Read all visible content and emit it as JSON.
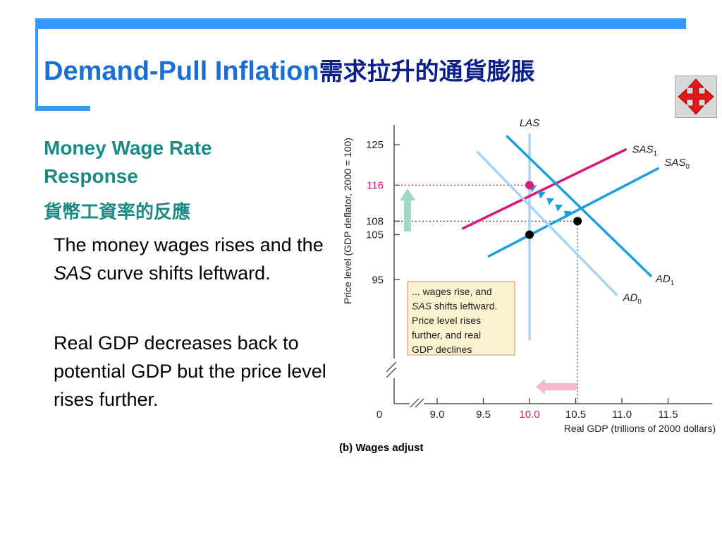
{
  "slide": {
    "title_en": "Demand-Pull Inflation",
    "title_zh": "需求拉升的通貨膨脹",
    "subheading_en": "Money Wage Rate Response",
    "subheading_zh": "貨幣工資率的反應",
    "para1_prefix": "The money wages rises and the ",
    "para1_em": "SAS",
    "para1_suffix": " curve shifts leftward.",
    "para2": "Real GDP decreases back to potential GDP but the price level rises further.",
    "nav_icon": "move-arrows-icon"
  },
  "chart_data": {
    "type": "line",
    "caption": "(b) Wages adjust",
    "xlabel": "Real GDP (trillions of 2000 dollars)",
    "ylabel": "Price level (GDP deflator, 2000 = 100)",
    "x_ticks": [
      "0",
      "9.0",
      "9.5",
      "10.0",
      "10.5",
      "11.0",
      "11.5"
    ],
    "x_tick_values": [
      9.0,
      9.5,
      10.0,
      10.5,
      11.0,
      11.5
    ],
    "y_ticks": [
      125,
      116,
      108,
      105,
      95
    ],
    "highlight_y_tick": 116,
    "highlight_x_tick": 10.0,
    "lines": [
      {
        "name": "LAS",
        "label": "LAS",
        "sub": "",
        "color": "#a8d4f2",
        "points": [
          [
            10.0,
            127.5
          ],
          [
            10.0,
            81.5
          ]
        ]
      },
      {
        "name": "SAS1",
        "label": "SAS",
        "sub": "1",
        "color": "#d81a78",
        "points": [
          [
            9.27,
            106.3
          ],
          [
            11.05,
            124.0
          ]
        ]
      },
      {
        "name": "SAS0",
        "label": "SAS",
        "sub": "0",
        "color": "#1aa0dc",
        "points": [
          [
            9.55,
            100.1
          ],
          [
            11.4,
            119.8
          ]
        ]
      },
      {
        "name": "AD1",
        "label": "AD",
        "sub": "1",
        "color": "#1aa0dc",
        "points": [
          [
            9.75,
            127.0
          ],
          [
            11.32,
            95.7
          ]
        ]
      },
      {
        "name": "AD0",
        "label": "AD",
        "sub": "0",
        "color": "#a8d4f2",
        "points": [
          [
            9.43,
            123.5
          ],
          [
            10.95,
            91.5
          ]
        ]
      }
    ],
    "points": [
      {
        "x": 10.0,
        "y": 116,
        "color": "#d81a78"
      },
      {
        "x": 10.52,
        "y": 108,
        "color": "#000000"
      },
      {
        "x": 10.0,
        "y": 105,
        "color": "#000000"
      }
    ],
    "annotation": "... wages rise, and SAS shifts leftward. Price level rises further, and real GDP declines",
    "colors": {
      "axis": "#333333",
      "highlight": "#d81a78",
      "box_fill": "#fbf3d0",
      "box_border": "#e0a080",
      "up_arrow": "#9fd8c8",
      "left_arrow": "#f6b8cc"
    }
  }
}
